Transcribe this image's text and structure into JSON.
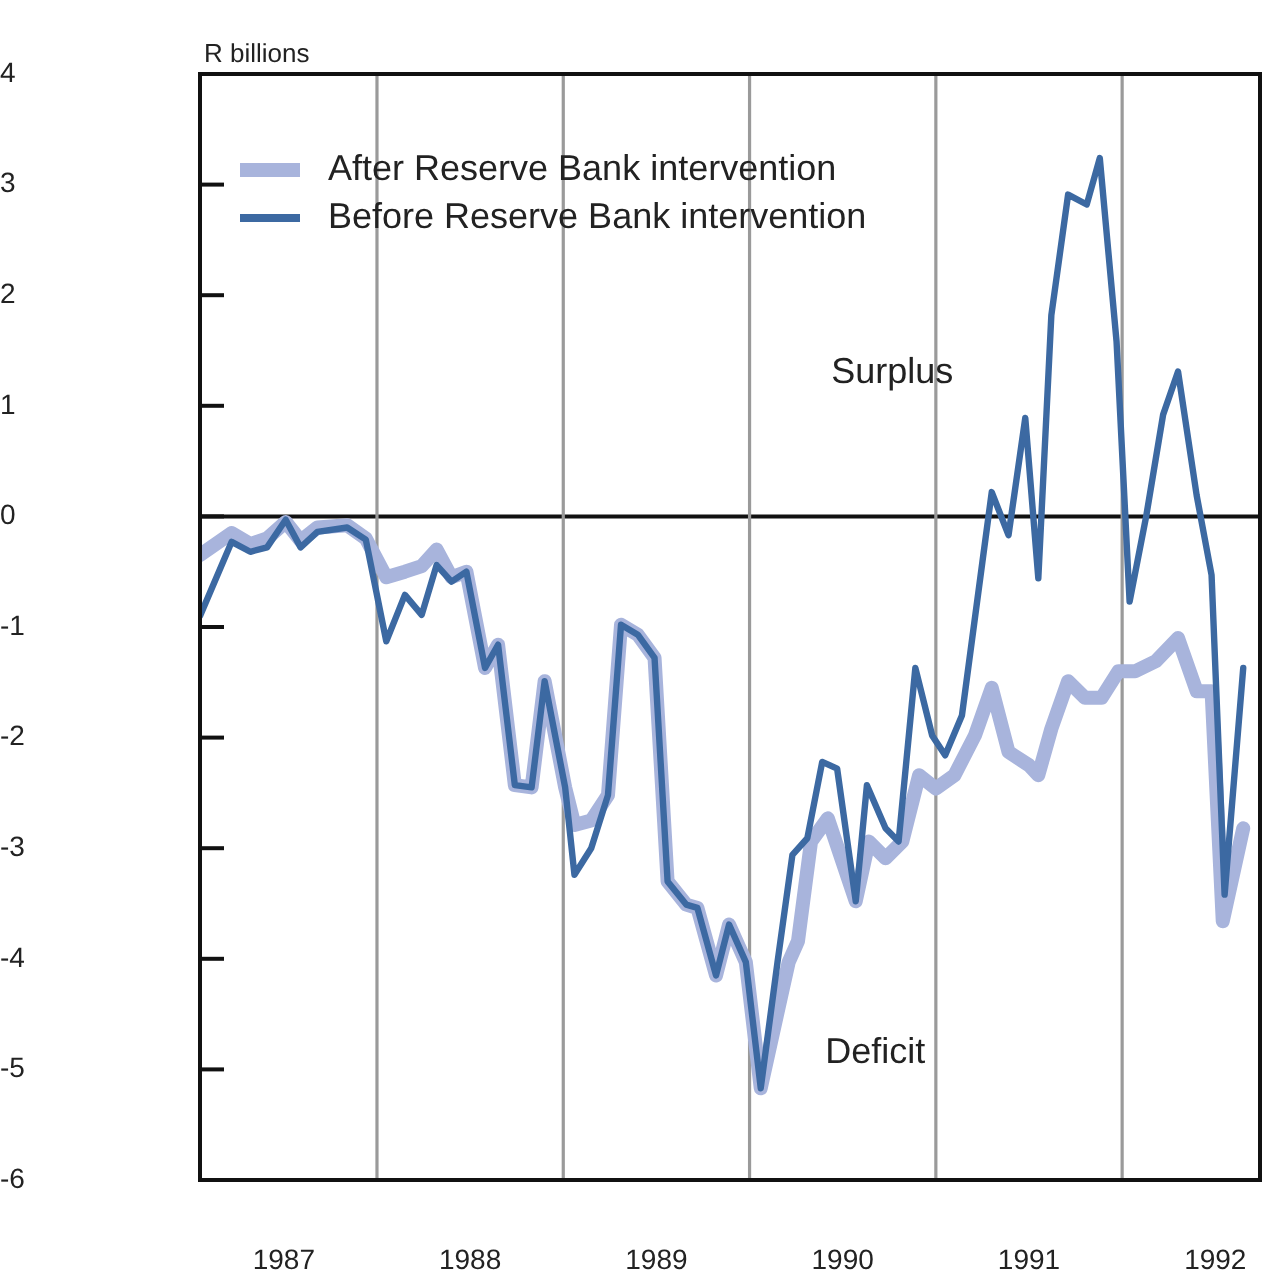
{
  "chart_data": {
    "type": "line",
    "ylabel": "R billions",
    "xlim": [
      1987.05,
      1992.74
    ],
    "xticks": [
      {
        "value": 1987.5,
        "label": "1987"
      },
      {
        "value": 1988.5,
        "label": "1988"
      },
      {
        "value": 1989.5,
        "label": "1989"
      },
      {
        "value": 1990.5,
        "label": "1990"
      },
      {
        "value": 1991.5,
        "label": "1991"
      },
      {
        "value": 1992.5,
        "label": "1992"
      }
    ],
    "ylim": [
      -6,
      4
    ],
    "yticks": [
      4,
      3,
      2,
      1,
      0,
      -1,
      -2,
      -3,
      -4,
      -5,
      -6
    ],
    "grid": false,
    "legend": "top left",
    "marker": "none",
    "line_style": "solid",
    "ref_lines": [
      {
        "axis": "y",
        "value": 0,
        "color": "#111111"
      },
      {
        "axis": "x",
        "value": 1988,
        "color": "#9a9a9a"
      },
      {
        "axis": "x",
        "value": 1989,
        "color": "#9a9a9a"
      },
      {
        "axis": "x",
        "value": 1990,
        "color": "#9a9a9a"
      },
      {
        "axis": "x",
        "value": 1991,
        "color": "#9a9a9a"
      },
      {
        "axis": "x",
        "value": 1992,
        "color": "#9a9a9a"
      }
    ],
    "annotations": [
      "Surplus",
      "Deficit"
    ],
    "series": [
      {
        "name": "After Reserve Bank intervention",
        "color": "#a8b4dc",
        "x": [
          1987.05,
          1987.22,
          1987.32,
          1987.41,
          1987.51,
          1987.59,
          1987.68,
          1987.84,
          1987.94,
          1988.05,
          1988.15,
          1988.24,
          1988.32,
          1988.4,
          1988.48,
          1988.58,
          1988.65,
          1988.74,
          1988.83,
          1988.9,
          1989.01,
          1989.06,
          1989.15,
          1989.24,
          1989.31,
          1989.4,
          1989.49,
          1989.56,
          1989.66,
          1989.72,
          1989.82,
          1989.89,
          1989.98,
          1990.06,
          1990.21,
          1990.26,
          1990.33,
          1990.42,
          1990.57,
          1990.64,
          1990.73,
          1990.82,
          1990.91,
          1991.0,
          1991.1,
          1991.21,
          1991.3,
          1991.39,
          1991.5,
          1991.55,
          1991.62,
          1991.71,
          1991.8,
          1991.89,
          1991.98,
          1992.07,
          1992.18,
          1992.3,
          1992.4,
          1992.48,
          1992.54,
          1992.65
        ],
        "values": [
          -0.35,
          -0.15,
          -0.25,
          -0.2,
          -0.05,
          -0.22,
          -0.1,
          -0.08,
          -0.2,
          -0.55,
          -0.5,
          -0.45,
          -0.3,
          -0.55,
          -0.5,
          -1.37,
          -1.16,
          -2.43,
          -2.45,
          -1.49,
          -2.45,
          -2.79,
          -2.75,
          -2.52,
          -0.98,
          -1.07,
          -1.28,
          -3.3,
          -3.51,
          -3.54,
          -4.15,
          -3.69,
          -4.03,
          -5.17,
          -4.03,
          -3.84,
          -2.94,
          -2.73,
          -3.48,
          -2.94,
          -3.09,
          -2.94,
          -2.34,
          -2.46,
          -2.34,
          -1.98,
          -1.55,
          -2.13,
          -2.25,
          -2.34,
          -1.92,
          -1.49,
          -1.64,
          -1.64,
          -1.4,
          -1.4,
          -1.31,
          -1.1,
          -1.58,
          -1.58,
          -3.66,
          -2.82
        ]
      },
      {
        "name": "Before Reserve Bank intervention",
        "color": "#3c69a2",
        "x": [
          1987.05,
          1987.22,
          1987.32,
          1987.41,
          1987.51,
          1987.59,
          1987.68,
          1987.84,
          1987.94,
          1988.05,
          1988.15,
          1988.24,
          1988.32,
          1988.4,
          1988.48,
          1988.58,
          1988.65,
          1988.74,
          1988.83,
          1988.9,
          1989.01,
          1989.06,
          1989.15,
          1989.24,
          1989.31,
          1989.4,
          1989.49,
          1989.56,
          1989.66,
          1989.72,
          1989.82,
          1989.89,
          1989.98,
          1990.06,
          1990.15,
          1990.23,
          1990.31,
          1990.39,
          1990.47,
          1990.57,
          1990.63,
          1990.73,
          1990.8,
          1990.89,
          1990.98,
          1991.05,
          1991.14,
          1991.25,
          1991.3,
          1991.39,
          1991.48,
          1991.55,
          1991.62,
          1991.71,
          1991.81,
          1991.88,
          1991.97,
          1992.04,
          1992.13,
          1992.22,
          1992.3,
          1992.4,
          1992.48,
          1992.55,
          1992.65
        ],
        "values": [
          -0.9,
          -0.23,
          -0.32,
          -0.28,
          -0.03,
          -0.28,
          -0.14,
          -0.1,
          -0.21,
          -1.13,
          -0.71,
          -0.89,
          -0.44,
          -0.59,
          -0.5,
          -1.37,
          -1.16,
          -2.43,
          -2.45,
          -1.49,
          -2.45,
          -3.24,
          -3.0,
          -2.52,
          -0.98,
          -1.07,
          -1.28,
          -3.3,
          -3.51,
          -3.54,
          -4.15,
          -3.69,
          -4.03,
          -5.17,
          -4.03,
          -3.06,
          -2.91,
          -2.22,
          -2.28,
          -3.48,
          -2.43,
          -2.82,
          -2.94,
          -1.37,
          -1.98,
          -2.16,
          -1.8,
          -0.41,
          0.22,
          -0.17,
          0.89,
          -0.56,
          1.82,
          2.91,
          2.82,
          3.24,
          1.58,
          -0.77,
          0.01,
          0.92,
          1.31,
          0.19,
          -0.53,
          -3.42,
          -1.37
        ]
      }
    ]
  }
}
